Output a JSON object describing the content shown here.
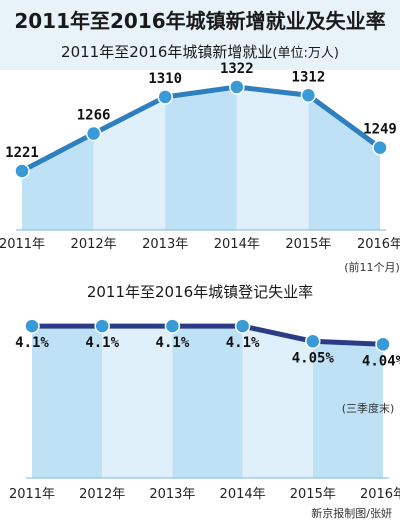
{
  "header": {
    "title": "2011年至2016年城镇新增就业及失业率"
  },
  "chart_data": [
    {
      "type": "area",
      "title": "2011年至2016年城镇新增就业",
      "unit_note": "(单位:万人)",
      "categories": [
        "2011年",
        "2012年",
        "2013年",
        "2014年",
        "2015年",
        "2016年"
      ],
      "values": [
        1221,
        1266,
        1310,
        1322,
        1312,
        1249
      ],
      "data_labels": [
        "1221",
        "1266",
        "1310",
        "1322",
        "1312",
        "1249"
      ],
      "ylim": [
        1150,
        1340
      ],
      "grid": false,
      "annotations": [
        "(前11个月)"
      ]
    },
    {
      "type": "area",
      "title": "2011年至2016年城镇登记失业率",
      "categories": [
        "2011年",
        "2012年",
        "2013年",
        "2014年",
        "2015年",
        "2016年"
      ],
      "values": [
        4.1,
        4.1,
        4.1,
        4.1,
        4.05,
        4.04
      ],
      "data_labels": [
        "4.1%",
        "4.1%",
        "4.1%",
        "4.1%",
        "4.05%",
        "4.04%"
      ],
      "ylim": [
        3.6,
        4.12
      ],
      "grid": false,
      "annotations": [
        "(三季度末)"
      ]
    }
  ],
  "credit": "新京报制图/张妍",
  "colors": {
    "title_band": "#c8dcea",
    "line": "#2e7fc0",
    "line_dark": "#2c3b86",
    "bar_light": "#bfe1f6",
    "bar_lighter": "#dff0fb",
    "marker": "#3a9ad8",
    "top_band": "#e8f2f9"
  }
}
